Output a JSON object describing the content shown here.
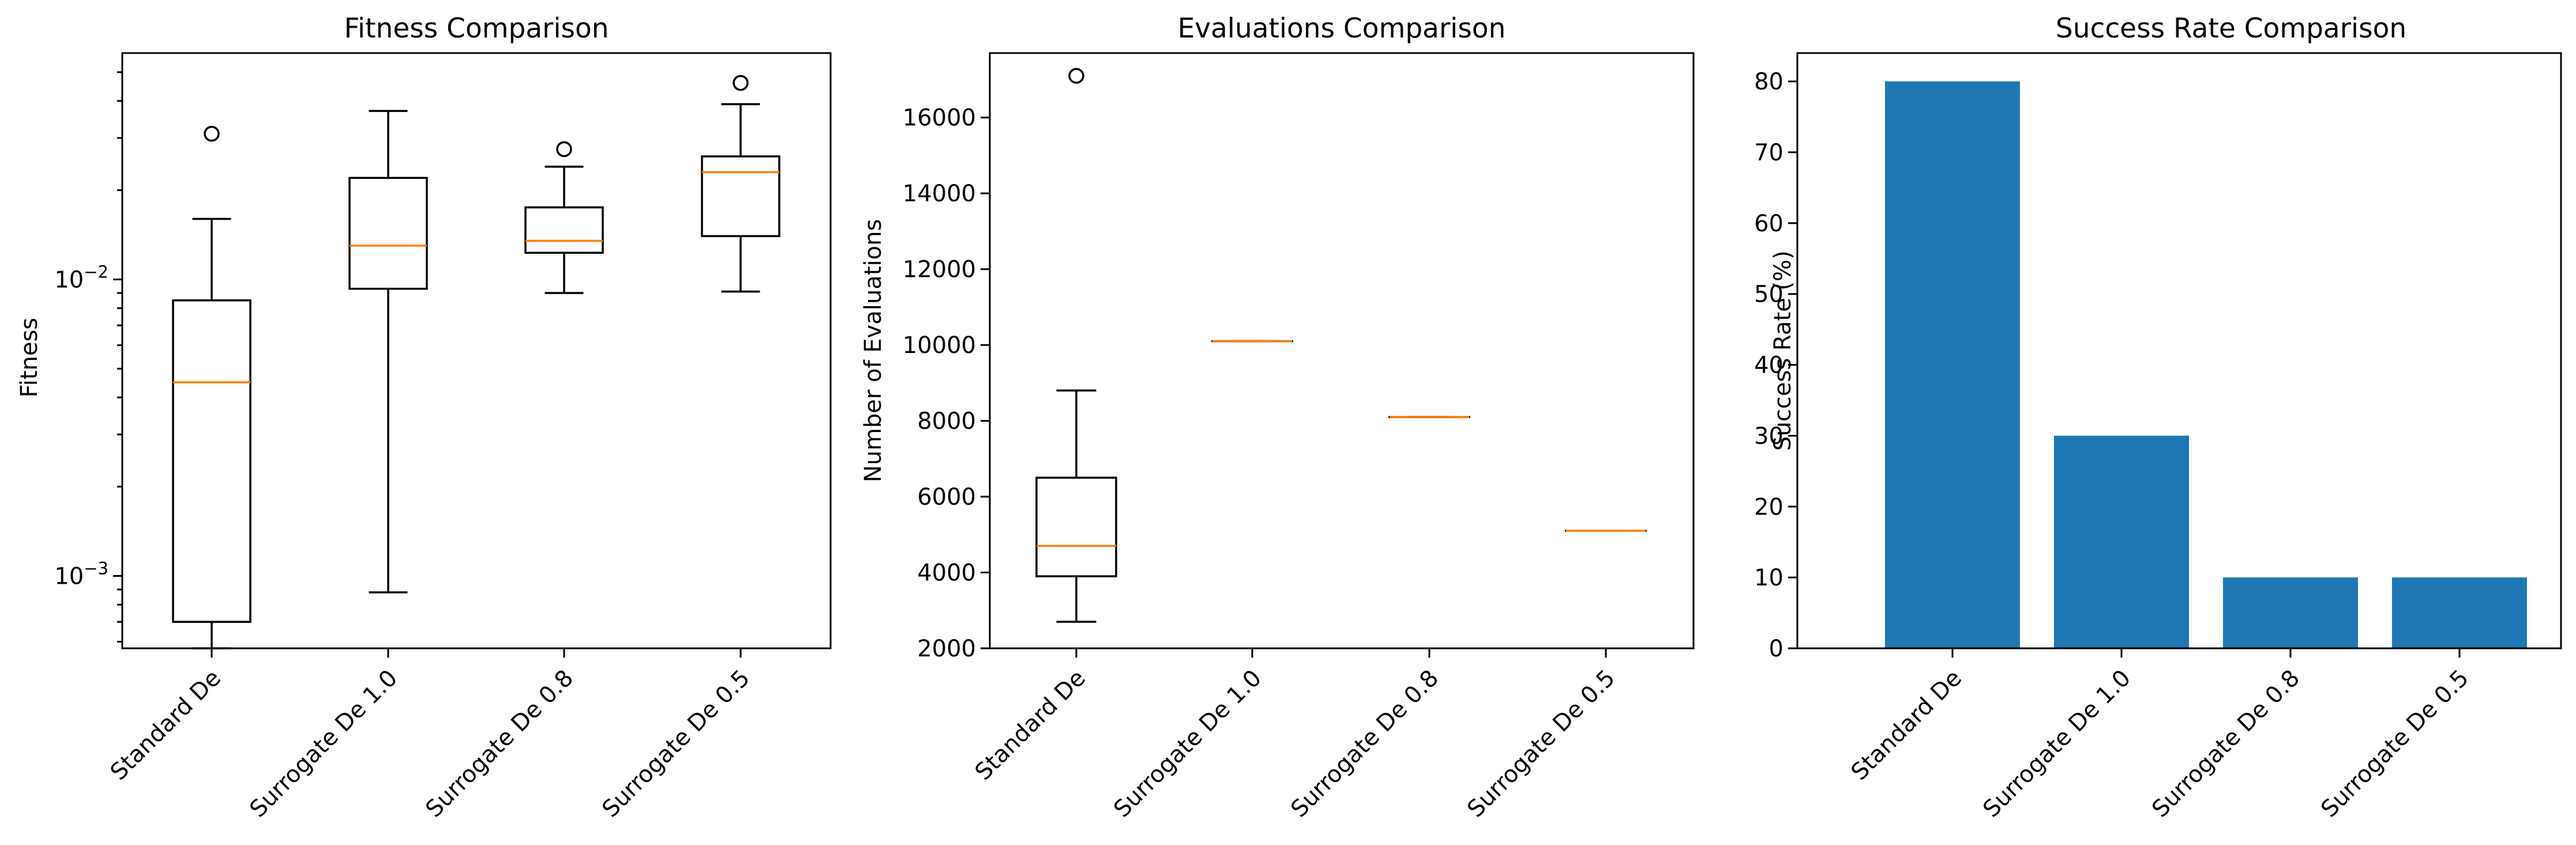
{
  "chart_data": [
    {
      "type": "box",
      "title": "Fitness Comparison",
      "xlabel": "",
      "ylabel": "Fitness",
      "yscale": "log",
      "ylim": [
        0.00057,
        0.058
      ],
      "yticks": [
        {
          "value": 0.001,
          "base": "10",
          "exp": "−3"
        },
        {
          "value": 0.01,
          "base": "10",
          "exp": "−2"
        }
      ],
      "categories": [
        "Standard De",
        "Surrogate De 1.0",
        "Surrogate De 0.8",
        "Surrogate De 0.5"
      ],
      "boxes": [
        {
          "whislo": 0.00057,
          "q1": 0.0007,
          "med": 0.0045,
          "q3": 0.0085,
          "whishi": 0.016,
          "fliers": [
            0.031
          ]
        },
        {
          "whislo": 0.00088,
          "q1": 0.0093,
          "med": 0.013,
          "q3": 0.022,
          "whishi": 0.037,
          "fliers": []
        },
        {
          "whislo": 0.009,
          "q1": 0.0123,
          "med": 0.0135,
          "q3": 0.0175,
          "whishi": 0.024,
          "fliers": [
            0.0275
          ]
        },
        {
          "whislo": 0.0091,
          "q1": 0.014,
          "med": 0.023,
          "q3": 0.026,
          "whishi": 0.039,
          "fliers": [
            0.046
          ]
        }
      ],
      "grid": false
    },
    {
      "type": "box",
      "title": "Evaluations Comparison",
      "xlabel": "",
      "ylabel": "Number of Evaluations",
      "yscale": "linear",
      "ylim": [
        2000,
        17700
      ],
      "yticks": [
        2000,
        4000,
        6000,
        8000,
        10000,
        12000,
        14000,
        16000
      ],
      "categories": [
        "Standard De",
        "Surrogate De 1.0",
        "Surrogate De 0.8",
        "Surrogate De 0.5"
      ],
      "boxes": [
        {
          "whislo": 2700,
          "q1": 3900,
          "med": 4700,
          "q3": 6500,
          "whishi": 8800,
          "fliers": [
            17100
          ]
        },
        {
          "whislo": 10100,
          "q1": 10100,
          "med": 10100,
          "q3": 10100,
          "whishi": 10100,
          "fliers": []
        },
        {
          "whislo": 8100,
          "q1": 8100,
          "med": 8100,
          "q3": 8100,
          "whishi": 8100,
          "fliers": []
        },
        {
          "whislo": 5100,
          "q1": 5100,
          "med": 5100,
          "q3": 5100,
          "whishi": 5100,
          "fliers": []
        }
      ],
      "grid": false
    },
    {
      "type": "bar",
      "title": "Success Rate Comparison",
      "xlabel": "",
      "ylabel": "Success Rate (%)",
      "ylim": [
        0,
        84
      ],
      "yticks": [
        0,
        10,
        20,
        30,
        40,
        50,
        60,
        70,
        80
      ],
      "categories": [
        "Standard De",
        "Surrogate De 1.0",
        "Surrogate De 0.8",
        "Surrogate De 0.5"
      ],
      "values": [
        80,
        30,
        10,
        10
      ],
      "bar_color": "#1f77b4",
      "grid": false
    }
  ],
  "colors": {
    "median": "#ff7f0e",
    "bar": "#1f77b4",
    "axes": "#000000"
  }
}
